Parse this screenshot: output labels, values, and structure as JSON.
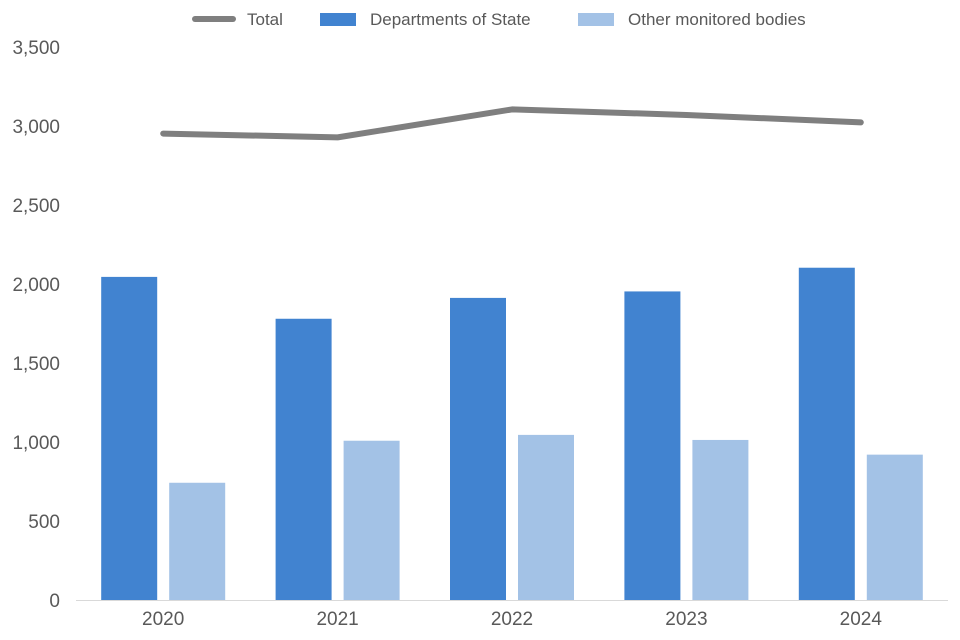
{
  "chart_data": {
    "type": "bar",
    "categories": [
      "2020",
      "2021",
      "2022",
      "2023",
      "2024"
    ],
    "series": [
      {
        "name": "Departments of State",
        "type": "bar",
        "color": "#4183d0",
        "values": [
          2045,
          1780,
          1912,
          1953,
          2103
        ]
      },
      {
        "name": "Other monitored bodies",
        "type": "bar",
        "color": "#a3c2e6",
        "values": [
          742,
          1008,
          1045,
          1013,
          920
        ]
      },
      {
        "name": "Total",
        "type": "line",
        "color": "#7f7f7f",
        "values": [
          2952,
          2928,
          3105,
          3070,
          3023
        ]
      }
    ],
    "ylim": [
      0,
      3500
    ],
    "yticks": [
      0,
      500,
      1000,
      1500,
      2000,
      2500,
      3000,
      3500
    ],
    "ytick_labels": [
      "0",
      "500",
      "1,000",
      "1,500",
      "2,000",
      "2,500",
      "3,000",
      "3,500"
    ],
    "grid": false,
    "legend_position": "top",
    "legend_order": [
      "Total",
      "Departments of State",
      "Other monitored bodies"
    ]
  }
}
